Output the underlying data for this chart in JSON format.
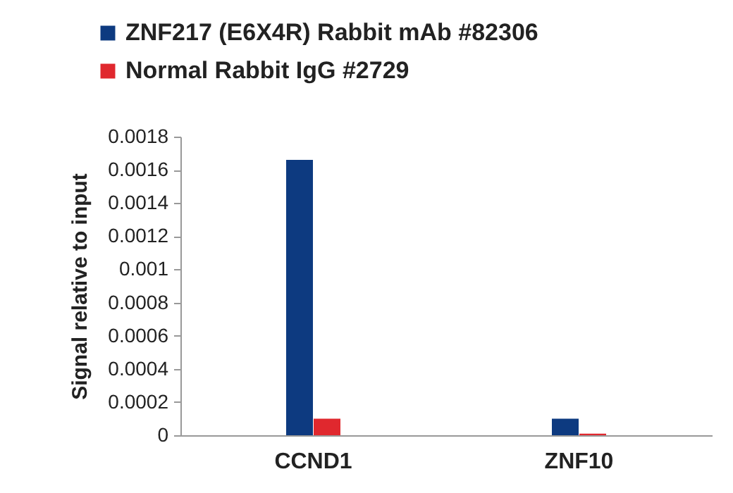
{
  "chart_data": {
    "type": "bar",
    "ylabel": "Signal relative to input",
    "categories": [
      "CCND1",
      "ZNF10"
    ],
    "series": [
      {
        "name": "ZNF217 (E6X4R) Rabbit mAb #82306",
        "color": "#0d3a80",
        "values": [
          0.00166,
          0.0001
        ]
      },
      {
        "name": "Normal Rabbit IgG #2729",
        "color": "#e0282e",
        "values": [
          0.0001,
          1e-05
        ]
      }
    ],
    "ylim": [
      0,
      0.0018
    ],
    "yticks": [
      0,
      0.0002,
      0.0004,
      0.0006,
      0.0008,
      0.001,
      0.0012,
      0.0014,
      0.0016,
      0.0018
    ],
    "grid": false,
    "legend": "top"
  }
}
